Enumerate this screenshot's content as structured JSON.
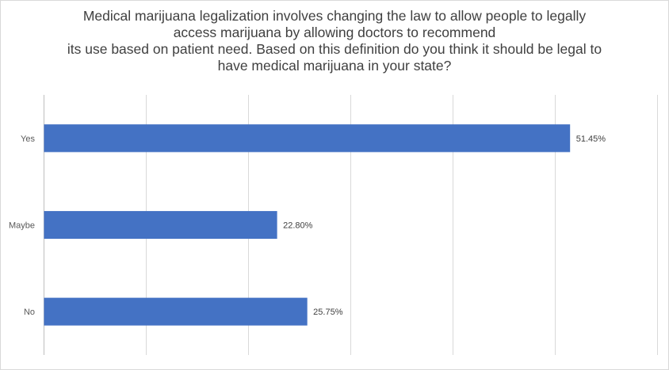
{
  "chart_data": {
    "type": "bar",
    "orientation": "horizontal",
    "title_lines": [
      "Medical marijuana legalization involves changing the law to allow people to legally",
      "access marijuana by allowing doctors to recommend",
      "its use based on patient need. Based on this definition do you think it should be legal to",
      "have medical marijuana in your state?"
    ],
    "categories": [
      "Yes",
      "Maybe",
      "No"
    ],
    "values": [
      51.45,
      22.8,
      25.75
    ],
    "data_labels": [
      "51.45%",
      "22.80%",
      "25.75%"
    ],
    "xlim": [
      0,
      60
    ],
    "x_gridline_step": 10,
    "grid": true,
    "tick_labels_shown": false,
    "legend": "none",
    "bar_color": "#4472c4",
    "gridline_color": "#d9d9d9"
  }
}
